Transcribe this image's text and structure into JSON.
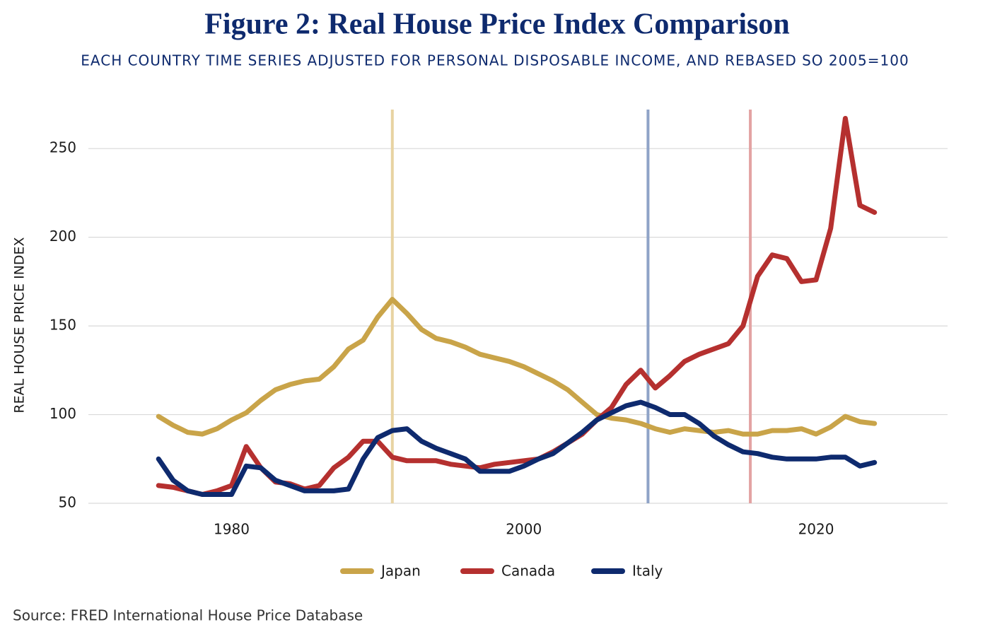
{
  "chart_data": {
    "type": "line",
    "title": "Figure 2: Real House Price Index Comparison",
    "subtitle": "EACH COUNTRY TIME SERIES ADJUSTED FOR PERSONAL DISPOSABLE INCOME, AND REBASED SO 2005=100",
    "y_label": "REAL HOUSE PRICE INDEX",
    "source": "Source: FRED International House Price Database",
    "x": [
      1975,
      1976,
      1977,
      1978,
      1979,
      1980,
      1981,
      1982,
      1983,
      1984,
      1985,
      1986,
      1987,
      1988,
      1989,
      1990,
      1991,
      1992,
      1993,
      1994,
      1995,
      1996,
      1997,
      1998,
      1999,
      2000,
      2001,
      2002,
      2003,
      2004,
      2005,
      2006,
      2007,
      2008,
      2009,
      2010,
      2011,
      2012,
      2013,
      2014,
      2015,
      2016,
      2017,
      2018,
      2019,
      2020,
      2021,
      2022,
      2023,
      2024
    ],
    "series": [
      {
        "name": "Japan",
        "color": "#c9a449",
        "values": [
          99,
          94,
          90,
          89,
          92,
          97,
          101,
          108,
          114,
          117,
          119,
          120,
          127,
          137,
          142,
          155,
          165,
          157,
          148,
          143,
          141,
          138,
          134,
          132,
          130,
          127,
          123,
          119,
          114,
          107,
          100,
          98,
          97,
          95,
          92,
          90,
          92,
          91,
          90,
          91,
          89,
          89,
          91,
          91,
          92,
          89,
          93,
          99,
          96,
          95
        ]
      },
      {
        "name": "Canada",
        "color": "#b5302f",
        "values": [
          60,
          59,
          57,
          55,
          57,
          60,
          82,
          70,
          62,
          61,
          58,
          60,
          70,
          76,
          85,
          85,
          76,
          74,
          74,
          74,
          72,
          71,
          70,
          72,
          73,
          74,
          75,
          79,
          84,
          89,
          97,
          104,
          117,
          125,
          115,
          122,
          130,
          134,
          137,
          140,
          150,
          178,
          190,
          188,
          175,
          176,
          205,
          267,
          218,
          214
        ]
      },
      {
        "name": "Italy",
        "color": "#0e2a6e",
        "values": [
          75,
          63,
          57,
          55,
          55,
          55,
          71,
          70,
          63,
          60,
          57,
          57,
          57,
          58,
          75,
          87,
          91,
          92,
          85,
          81,
          78,
          75,
          68,
          68,
          68,
          71,
          75,
          78,
          84,
          90,
          97,
          101,
          105,
          107,
          104,
          100,
          100,
          95,
          88,
          83,
          79,
          78,
          76,
          75,
          75,
          75,
          76,
          76,
          71,
          73
        ]
      }
    ],
    "vlines": [
      {
        "x": 1991,
        "color": "#e8d3a2"
      },
      {
        "x": 2008.5,
        "color": "#8fa3c7"
      },
      {
        "x": 2015.5,
        "color": "#e3a3a3"
      }
    ],
    "xlim": [
      1970.2,
      2029
    ],
    "xticks": [
      1980,
      2000,
      2020
    ],
    "ylim": [
      50,
      272
    ],
    "yticks": [
      50,
      100,
      150,
      200,
      250
    ],
    "grid": true,
    "legend": "bottom"
  }
}
